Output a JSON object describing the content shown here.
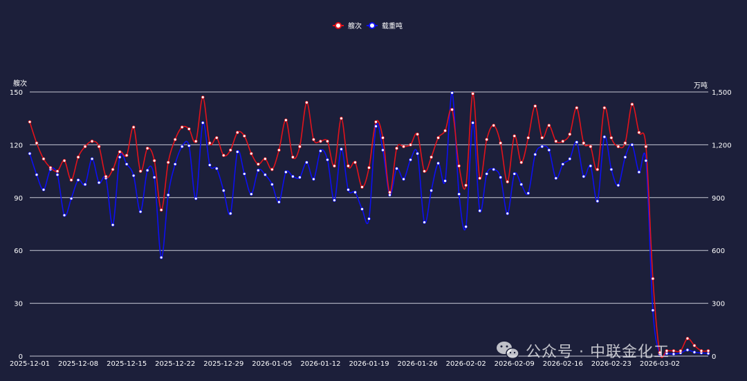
{
  "colors": {
    "background": "#1c1f3a",
    "series_red": "#e3131b",
    "series_blue": "#0d0ff2",
    "grid": "#c8cad6",
    "text": "#ffffff"
  },
  "watermark": {
    "icon": "wechat-icon",
    "text": "公众号 · 中联金化工"
  },
  "chart_data": {
    "type": "line",
    "title": "",
    "legend": {
      "position": "top-center"
    },
    "grid": true,
    "x_ticks": [
      "2025-12-01",
      "2025-12-08",
      "2025-12-15",
      "2025-12-22",
      "2025-12-29",
      "2026-01-05",
      "2026-01-12",
      "2026-01-19",
      "2026-01-26",
      "2026-02-02",
      "2026-02-09",
      "2026-02-16",
      "2026-02-23",
      "2026-03-02"
    ],
    "y_left": {
      "label": "艘次",
      "range": [
        0,
        150
      ],
      "ticks": [
        "0",
        "30",
        "60",
        "90",
        "120",
        "150"
      ]
    },
    "y_right": {
      "label": "万吨",
      "range": [
        0,
        1500
      ],
      "ticks": [
        "0",
        "300",
        "600",
        "900",
        "1,200",
        "1,500"
      ]
    },
    "series": [
      {
        "name": "艘次",
        "axis": "left",
        "values": [
          133,
          121,
          112,
          107,
          105,
          111,
          100,
          113,
          119,
          122,
          119,
          102,
          106,
          116,
          114,
          130,
          105,
          118,
          111,
          83,
          110,
          123,
          130,
          129,
          122,
          147,
          121,
          124,
          114,
          117,
          127,
          125,
          115,
          109,
          112,
          106,
          117,
          134,
          113,
          119,
          144,
          123,
          122,
          122,
          108,
          135,
          108,
          110,
          96,
          107,
          133,
          124,
          93,
          118,
          119,
          120,
          126,
          105,
          113,
          124,
          128,
          140,
          108,
          97,
          149,
          101,
          123,
          131,
          121,
          99,
          125,
          110,
          124,
          142,
          124,
          131,
          122,
          122,
          126,
          141,
          121,
          119,
          106,
          141,
          124,
          119,
          121,
          143,
          127,
          119,
          44,
          2,
          3,
          3,
          3,
          10,
          6,
          3,
          3
        ]
      },
      {
        "name": "载重吨",
        "axis": "right",
        "values": [
          1150,
          1030,
          945,
          1060,
          1030,
          800,
          895,
          1000,
          975,
          1120,
          985,
          1010,
          745,
          1130,
          1090,
          1025,
          820,
          1055,
          1015,
          560,
          915,
          1090,
          1190,
          1195,
          895,
          1325,
          1085,
          1065,
          940,
          810,
          1160,
          1035,
          920,
          1055,
          1030,
          975,
          875,
          1045,
          1020,
          1015,
          1100,
          1005,
          1165,
          1115,
          885,
          1175,
          945,
          930,
          835,
          780,
          1305,
          1170,
          915,
          1065,
          1005,
          1115,
          1150,
          760,
          940,
          1095,
          995,
          1495,
          920,
          735,
          1325,
          825,
          1035,
          1060,
          1015,
          810,
          1035,
          975,
          925,
          1145,
          1190,
          1170,
          1010,
          1090,
          1120,
          1215,
          1020,
          1080,
          880,
          1245,
          1060,
          970,
          1130,
          1200,
          1045,
          1110,
          260,
          12,
          15,
          12,
          18,
          35,
          22,
          18,
          15
        ]
      }
    ]
  }
}
